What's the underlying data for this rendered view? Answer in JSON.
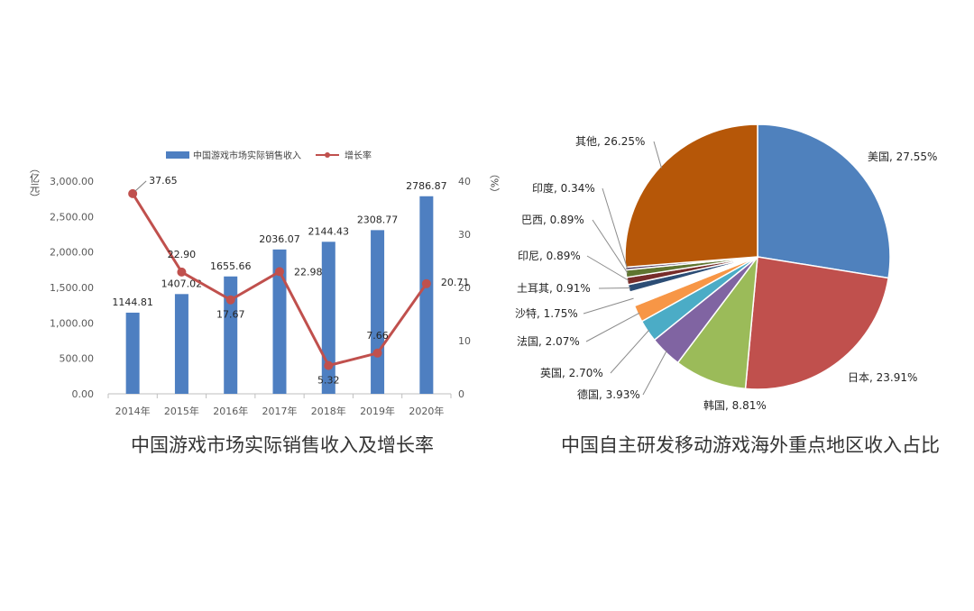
{
  "chart_data": [
    {
      "type": "bar",
      "title": "中国游戏市场实际销售收入及增长率",
      "categories": [
        "2014年",
        "2015年",
        "2016年",
        "2017年",
        "2018年",
        "2019年",
        "2020年"
      ],
      "series": [
        {
          "name": "中国游戏市场实际销售收入",
          "type": "bar",
          "axis": "left",
          "values": [
            1144.81,
            1407.02,
            1655.66,
            2036.07,
            2144.43,
            2308.77,
            2786.87
          ],
          "labels": [
            "1144.81",
            "1407.02",
            "1655.66",
            "2036.07",
            "2144.43",
            "2308.77",
            "2786.87"
          ],
          "color": "#4E7FC1"
        },
        {
          "name": "增长率",
          "type": "line",
          "axis": "right",
          "values": [
            37.65,
            22.9,
            17.67,
            22.98,
            5.32,
            7.66,
            20.71
          ],
          "labels": [
            "37.65",
            "22.90",
            "17.67",
            "22.98",
            "5.32",
            "7.66",
            "20.71"
          ],
          "color": "#C0504D"
        }
      ],
      "ylabel": "（亿元）",
      "y2label": "（%）",
      "ylim": [
        0,
        3000
      ],
      "y2lim": [
        0,
        40
      ],
      "yticks": [
        "0.00",
        "500.00",
        "1,000.00",
        "1,500.00",
        "2,000.00",
        "2,500.00",
        "3,000.00"
      ],
      "y2ticks": [
        "0",
        "10",
        "20",
        "30",
        "40"
      ],
      "legend_position": "top",
      "grid": false
    },
    {
      "type": "pie",
      "title": "中国自主研发移动游戏海外重点地区收入占比",
      "slices": [
        {
          "label": "美国, 27.55%",
          "value": 27.55,
          "color": "#4F81BD"
        },
        {
          "label": "日本, 23.91%",
          "value": 23.91,
          "color": "#C0504D"
        },
        {
          "label": "韩国, 8.81%",
          "value": 8.81,
          "color": "#9BBB59"
        },
        {
          "label": "德国, 3.93%",
          "value": 3.93,
          "color": "#8064A2"
        },
        {
          "label": "英国, 2.70%",
          "value": 2.7,
          "color": "#4BACC6"
        },
        {
          "label": "法国, 2.07%",
          "value": 2.07,
          "color": "#F79646"
        },
        {
          "label": "沙特, 1.75%",
          "value": 1.75,
          "color": "#FFFFFF"
        },
        {
          "label": "土耳其, 0.91%",
          "value": 0.91,
          "color": "#2C4D75"
        },
        {
          "label": "印尼, 0.89%",
          "value": 0.89,
          "color": "#772C2A"
        },
        {
          "label": "巴西, 0.89%",
          "value": 0.89,
          "color": "#5F7530"
        },
        {
          "label": "印度, 0.34%",
          "value": 0.34,
          "color": "#4D3B62"
        },
        {
          "label": "其他, 26.25%",
          "value": 26.25,
          "color": "#B65708"
        }
      ]
    }
  ]
}
